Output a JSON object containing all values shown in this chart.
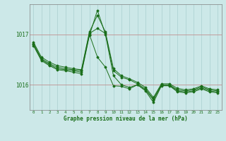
{
  "background_color": "#cce8e8",
  "plot_bg_color": "#cce8e8",
  "line_color": "#1a6e1a",
  "title": "Graphe pression niveau de la mer (hPa)",
  "ylim": [
    1015.5,
    1017.6
  ],
  "xlim": [
    -0.5,
    23.5
  ],
  "yticks": [
    1016,
    1017
  ],
  "xticks": [
    0,
    1,
    2,
    3,
    4,
    5,
    6,
    7,
    8,
    9,
    10,
    11,
    12,
    13,
    14,
    15,
    16,
    17,
    18,
    19,
    20,
    21,
    22,
    23
  ],
  "series": [
    [
      1016.85,
      1016.55,
      1016.45,
      1016.38,
      1016.35,
      1016.32,
      1016.3,
      1017.05,
      1017.38,
      1017.05,
      1016.32,
      1016.18,
      1016.12,
      1016.05,
      1015.95,
      1015.75,
      1016.02,
      1016.02,
      1015.93,
      1015.9,
      1015.92,
      1015.98,
      1015.92,
      1015.9
    ],
    [
      1016.82,
      1016.52,
      1016.42,
      1016.35,
      1016.32,
      1016.3,
      1016.28,
      1017.02,
      1017.12,
      1017.02,
      1016.28,
      1016.15,
      1016.1,
      1016.02,
      1015.92,
      1015.72,
      1016.0,
      1016.0,
      1015.9,
      1015.88,
      1015.9,
      1015.96,
      1015.9,
      1015.88
    ],
    [
      1016.8,
      1016.5,
      1016.4,
      1016.32,
      1016.3,
      1016.28,
      1016.25,
      1017.0,
      1016.55,
      1016.35,
      1015.98,
      1015.97,
      1015.92,
      1016.0,
      1015.9,
      1015.7,
      1015.99,
      1015.99,
      1015.88,
      1015.86,
      1015.88,
      1015.94,
      1015.88,
      1015.86
    ],
    [
      1016.78,
      1016.48,
      1016.38,
      1016.3,
      1016.28,
      1016.25,
      1016.22,
      1016.98,
      1017.48,
      1017.0,
      1016.18,
      1016.0,
      1015.95,
      1016.0,
      1015.88,
      1015.65,
      1015.98,
      1015.98,
      1015.86,
      1015.84,
      1015.86,
      1015.92,
      1015.86,
      1015.84
    ]
  ]
}
